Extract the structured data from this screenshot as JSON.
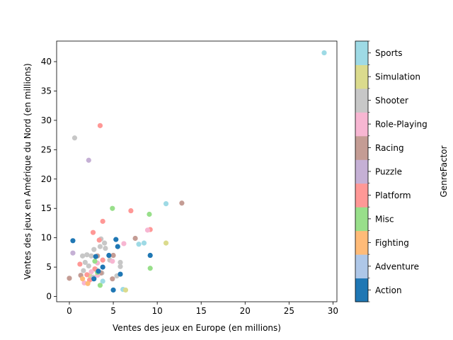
{
  "chart_data": {
    "type": "scatter",
    "title": "",
    "xlabel": "Ventes des jeux en Europe (en millions)",
    "ylabel": "Ventes des jeux en Amérique du Nord (en millions)",
    "xlim": [
      -1.45,
      30.45
    ],
    "ylim": [
      -0.9,
      43.5
    ],
    "xticks": [
      0,
      5,
      10,
      15,
      20,
      25,
      30
    ],
    "yticks": [
      0,
      5,
      10,
      15,
      20,
      25,
      30,
      35,
      40
    ],
    "grid": false,
    "colorbar": {
      "label": "GenreFactor",
      "categories": [
        "Action",
        "Adventure",
        "Fighting",
        "Misc",
        "Platform",
        "Puzzle",
        "Racing",
        "Role-Playing",
        "Shooter",
        "Simulation",
        "Sports"
      ],
      "colors": [
        "#1f77b4",
        "#aec7e8",
        "#ffbb78",
        "#98df8a",
        "#ff9896",
        "#c5b0d5",
        "#c49c94",
        "#f7b6d2",
        "#c7c7c7",
        "#dbdb8d",
        "#9edae5"
      ]
    },
    "points": [
      {
        "x": 29.0,
        "y": 41.5,
        "genre": "Sports"
      },
      {
        "x": 11.0,
        "y": 15.8,
        "genre": "Sports"
      },
      {
        "x": 8.5,
        "y": 9.1,
        "genre": "Sports"
      },
      {
        "x": 7.9,
        "y": 8.9,
        "genre": "Sports"
      },
      {
        "x": 6.1,
        "y": 1.2,
        "genre": "Sports"
      },
      {
        "x": 3.8,
        "y": 2.6,
        "genre": "Sports"
      },
      {
        "x": 11.0,
        "y": 9.1,
        "genre": "Simulation"
      },
      {
        "x": 6.4,
        "y": 1.1,
        "genre": "Simulation"
      },
      {
        "x": 2.3,
        "y": 3.6,
        "genre": "Simulation"
      },
      {
        "x": 0.6,
        "y": 27.0,
        "genre": "Shooter"
      },
      {
        "x": 3.6,
        "y": 9.8,
        "genre": "Shooter"
      },
      {
        "x": 4.0,
        "y": 9.1,
        "genre": "Shooter"
      },
      {
        "x": 3.5,
        "y": 8.5,
        "genre": "Shooter"
      },
      {
        "x": 4.1,
        "y": 8.2,
        "genre": "Shooter"
      },
      {
        "x": 2.8,
        "y": 8.0,
        "genre": "Shooter"
      },
      {
        "x": 1.5,
        "y": 6.9,
        "genre": "Shooter"
      },
      {
        "x": 2.0,
        "y": 7.1,
        "genre": "Shooter"
      },
      {
        "x": 2.5,
        "y": 6.9,
        "genre": "Shooter"
      },
      {
        "x": 4.6,
        "y": 6.2,
        "genre": "Shooter"
      },
      {
        "x": 5.8,
        "y": 5.8,
        "genre": "Shooter"
      },
      {
        "x": 5.8,
        "y": 5.1,
        "genre": "Shooter"
      },
      {
        "x": 1.8,
        "y": 5.8,
        "genre": "Shooter"
      },
      {
        "x": 2.2,
        "y": 5.2,
        "genre": "Shooter"
      },
      {
        "x": 3.0,
        "y": 4.6,
        "genre": "Shooter"
      },
      {
        "x": 1.6,
        "y": 4.4,
        "genre": "Shooter"
      },
      {
        "x": 3.7,
        "y": 4.0,
        "genre": "Shooter"
      },
      {
        "x": 2.7,
        "y": 3.3,
        "genre": "Shooter"
      },
      {
        "x": 5.4,
        "y": 3.5,
        "genre": "Shooter"
      },
      {
        "x": 2.2,
        "y": 23.2,
        "genre": "Puzzle"
      },
      {
        "x": 0.4,
        "y": 7.4,
        "genre": "Puzzle"
      },
      {
        "x": 2.7,
        "y": 3.0,
        "genre": "Puzzle"
      },
      {
        "x": 3.5,
        "y": 29.1,
        "genre": "Platform"
      },
      {
        "x": 3.8,
        "y": 12.8,
        "genre": "Platform"
      },
      {
        "x": 7.0,
        "y": 14.6,
        "genre": "Platform"
      },
      {
        "x": 2.7,
        "y": 10.9,
        "genre": "Platform"
      },
      {
        "x": 9.2,
        "y": 11.4,
        "genre": "Platform"
      },
      {
        "x": 3.4,
        "y": 9.6,
        "genre": "Platform"
      },
      {
        "x": 3.8,
        "y": 6.2,
        "genre": "Platform"
      },
      {
        "x": 1.2,
        "y": 5.5,
        "genre": "Platform"
      },
      {
        "x": 2.9,
        "y": 4.7,
        "genre": "Platform"
      },
      {
        "x": 2.0,
        "y": 3.7,
        "genre": "Platform"
      },
      {
        "x": 2.3,
        "y": 2.8,
        "genre": "Platform"
      },
      {
        "x": 12.8,
        "y": 15.9,
        "genre": "Racing"
      },
      {
        "x": 7.5,
        "y": 9.9,
        "genre": "Racing"
      },
      {
        "x": 5.0,
        "y": 7.0,
        "genre": "Racing"
      },
      {
        "x": 3.2,
        "y": 6.9,
        "genre": "Racing"
      },
      {
        "x": 1.3,
        "y": 3.6,
        "genre": "Racing"
      },
      {
        "x": 3.6,
        "y": 4.0,
        "genre": "Racing"
      },
      {
        "x": 4.9,
        "y": 3.0,
        "genre": "Racing"
      },
      {
        "x": 0.0,
        "y": 3.1,
        "genre": "Racing"
      },
      {
        "x": 8.9,
        "y": 11.3,
        "genre": "Role-Playing"
      },
      {
        "x": 6.2,
        "y": 9.0,
        "genre": "Role-Playing"
      },
      {
        "x": 4.9,
        "y": 6.0,
        "genre": "Role-Playing"
      },
      {
        "x": 3.2,
        "y": 5.7,
        "genre": "Role-Playing"
      },
      {
        "x": 2.5,
        "y": 4.2,
        "genre": "Role-Playing"
      },
      {
        "x": 1.7,
        "y": 2.3,
        "genre": "Role-Playing"
      },
      {
        "x": 3.2,
        "y": 3.6,
        "genre": "Role-Playing"
      },
      {
        "x": 4.9,
        "y": 15.0,
        "genre": "Misc"
      },
      {
        "x": 9.1,
        "y": 14.0,
        "genre": "Misc"
      },
      {
        "x": 9.2,
        "y": 4.8,
        "genre": "Misc"
      },
      {
        "x": 2.9,
        "y": 6.0,
        "genre": "Misc"
      },
      {
        "x": 3.5,
        "y": 1.9,
        "genre": "Misc"
      },
      {
        "x": 3.2,
        "y": 4.1,
        "genre": "Misc"
      },
      {
        "x": 2.1,
        "y": 2.2,
        "genre": "Fighting"
      },
      {
        "x": 1.5,
        "y": 3.0,
        "genre": "Fighting"
      },
      {
        "x": 5.3,
        "y": 9.7,
        "genre": "Action"
      },
      {
        "x": 5.5,
        "y": 8.5,
        "genre": "Action"
      },
      {
        "x": 0.4,
        "y": 9.5,
        "genre": "Action"
      },
      {
        "x": 4.5,
        "y": 7.0,
        "genre": "Action"
      },
      {
        "x": 9.2,
        "y": 7.0,
        "genre": "Action"
      },
      {
        "x": 3.0,
        "y": 6.8,
        "genre": "Action"
      },
      {
        "x": 3.8,
        "y": 5.0,
        "genre": "Action"
      },
      {
        "x": 5.8,
        "y": 3.8,
        "genre": "Action"
      },
      {
        "x": 2.8,
        "y": 3.0,
        "genre": "Action"
      },
      {
        "x": 5.0,
        "y": 1.1,
        "genre": "Action"
      },
      {
        "x": 3.3,
        "y": 4.3,
        "genre": "Action"
      }
    ]
  }
}
